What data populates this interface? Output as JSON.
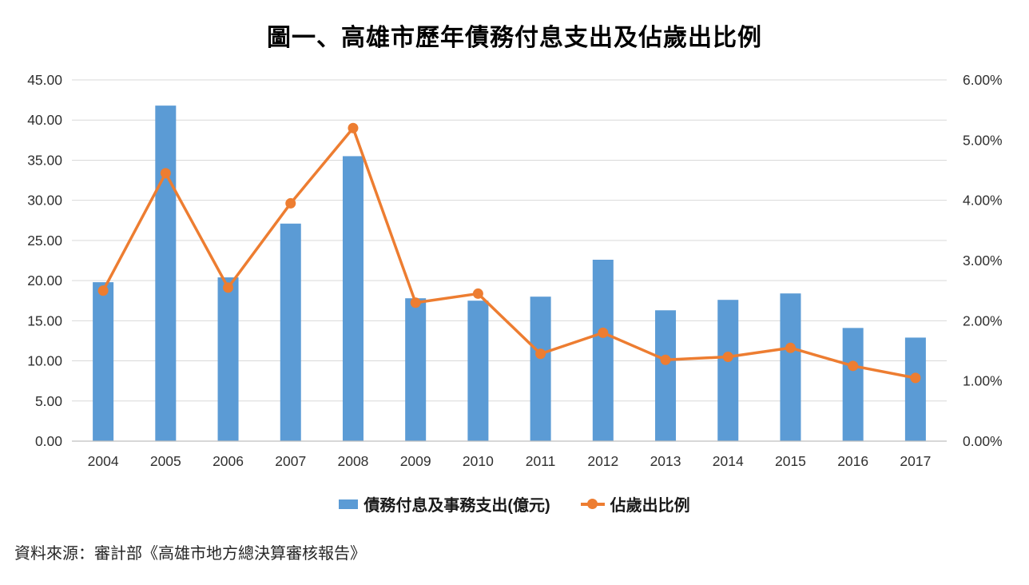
{
  "title": "圖一、高雄市歷年債務付息支出及佔歲出比例",
  "source": "資料來源：審計部《高雄市地方總決算審核報告》",
  "legend": {
    "bar_label": "債務付息及事務支出(億元)",
    "line_label": "佔歲出比例"
  },
  "colors": {
    "bar": "#5B9BD5",
    "line": "#ED7D31",
    "gridline": "#D9D9D9",
    "axis_line": "#BFBFBF",
    "tick_text": "#303030"
  },
  "chart_data": {
    "type": "combo-bar-line",
    "title": "圖一、高雄市歷年債務付息支出及佔歲出比例",
    "categories": [
      "2004",
      "2005",
      "2006",
      "2007",
      "2008",
      "2009",
      "2010",
      "2011",
      "2012",
      "2013",
      "2014",
      "2015",
      "2016",
      "2017"
    ],
    "series": [
      {
        "name": "債務付息及事務支出(億元)",
        "type": "bar",
        "axis": "left",
        "values": [
          19.8,
          41.8,
          20.4,
          27.1,
          35.5,
          17.8,
          17.5,
          18.0,
          22.6,
          16.3,
          17.6,
          18.4,
          14.1,
          12.9
        ]
      },
      {
        "name": "佔歲出比例",
        "type": "line",
        "axis": "right",
        "unit": "%",
        "values": [
          2.5,
          4.45,
          2.55,
          3.95,
          5.2,
          2.3,
          2.45,
          1.45,
          1.8,
          1.35,
          1.4,
          1.55,
          1.25,
          1.05
        ]
      }
    ],
    "left_axis": {
      "min": 0,
      "max": 45,
      "step": 5,
      "tick_labels": [
        "0.00",
        "5.00",
        "10.00",
        "15.00",
        "20.00",
        "25.00",
        "30.00",
        "35.00",
        "40.00",
        "45.00"
      ]
    },
    "right_axis": {
      "min": 0,
      "max": 6,
      "step": 1,
      "tick_labels": [
        "0.00%",
        "1.00%",
        "2.00%",
        "3.00%",
        "4.00%",
        "5.00%",
        "6.00%"
      ]
    },
    "grid": "horizontal-only",
    "legend_position": "bottom"
  }
}
